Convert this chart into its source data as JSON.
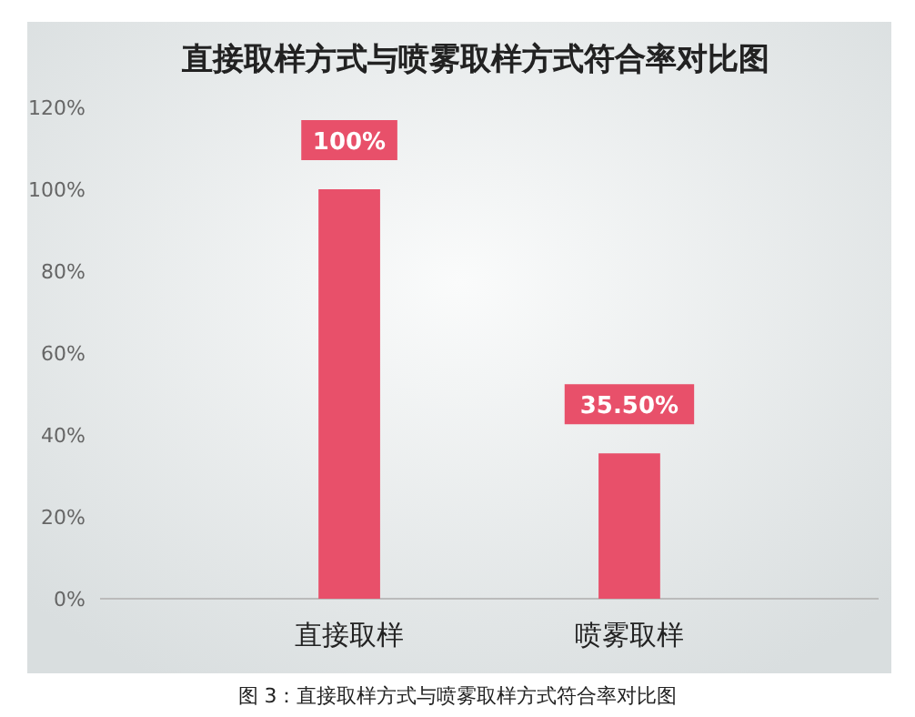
{
  "chart_data": {
    "type": "bar",
    "title": "直接取样方式与喷雾取样方式符合率对比图",
    "categories": [
      "直接取样",
      "喷雾取样"
    ],
    "values": [
      100,
      35.5
    ],
    "value_labels": [
      "100%",
      "35.50%"
    ],
    "color": "#e8506a",
    "ylim": [
      0,
      120
    ],
    "yticks": [
      {
        "value": 0,
        "label": "0%"
      },
      {
        "value": 20,
        "label": "20%"
      },
      {
        "value": 40,
        "label": "40%"
      },
      {
        "value": 60,
        "label": "60%"
      },
      {
        "value": 80,
        "label": "80%"
      },
      {
        "value": 100,
        "label": "100%"
      },
      {
        "value": 120,
        "label": "120%"
      }
    ],
    "grid": false,
    "annotations": [
      "图 3：直接取样方式与喷雾取样方式符合率对比图"
    ]
  }
}
